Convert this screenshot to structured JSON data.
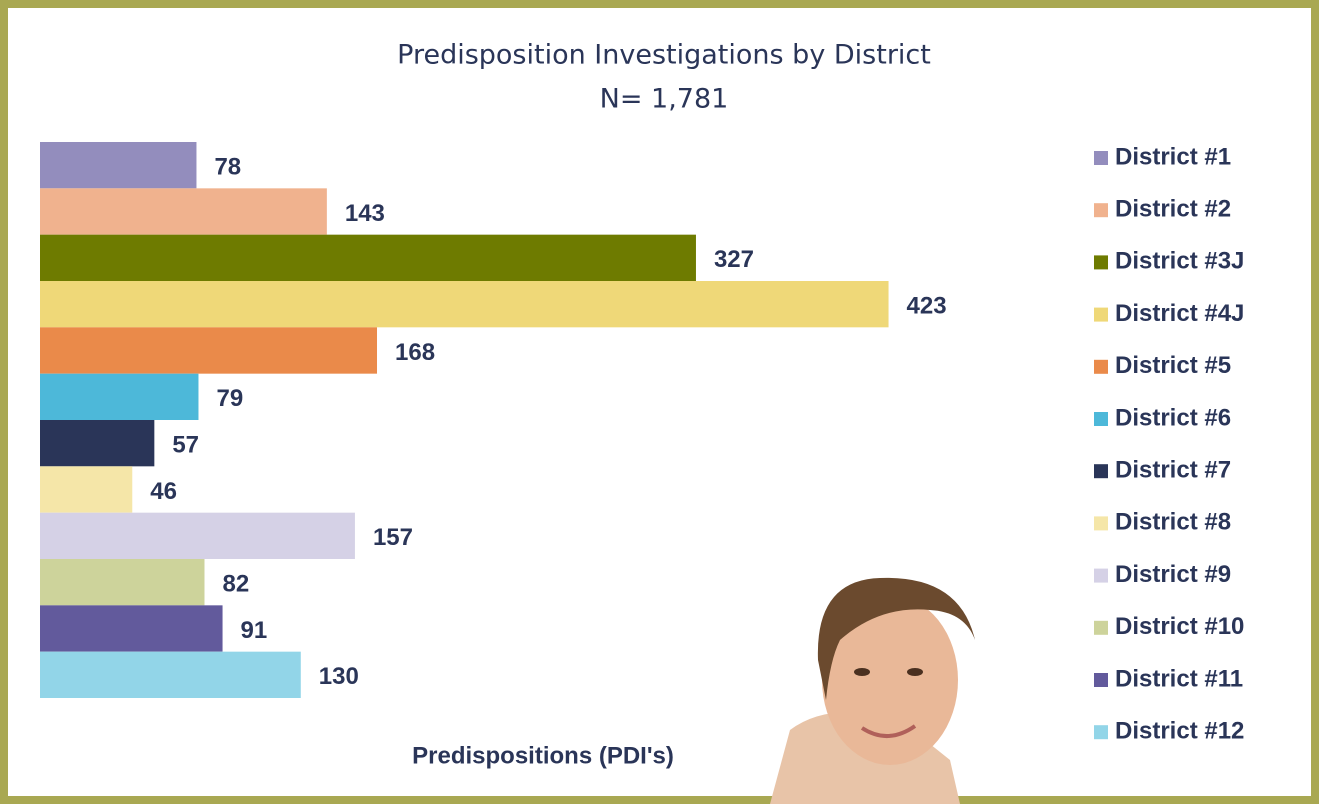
{
  "chart_data": {
    "type": "bar",
    "orientation": "horizontal",
    "title": "Predisposition Investigations by District",
    "subtitle": "N= 1,781",
    "x_label": "Predispositions (PDI's)",
    "xlim": [
      0,
      500
    ],
    "legend": "right",
    "series": [
      {
        "name": "District #1",
        "color": "#938dbd",
        "values": [
          78
        ]
      },
      {
        "name": "District #2",
        "color": "#f0b28e",
        "values": [
          143
        ]
      },
      {
        "name": "District #3J",
        "color": "#6e7b00",
        "values": [
          327
        ]
      },
      {
        "name": "District #4J",
        "color": "#efd878",
        "values": [
          423
        ]
      },
      {
        "name": "District #5",
        "color": "#ea8a4a",
        "values": [
          168
        ]
      },
      {
        "name": "District #6",
        "color": "#4db8d9",
        "values": [
          79
        ]
      },
      {
        "name": "District #7",
        "color": "#2a3558",
        "values": [
          57
        ]
      },
      {
        "name": "District #8",
        "color": "#f5e6a8",
        "values": [
          46
        ]
      },
      {
        "name": "District #9",
        "color": "#d5d1e6",
        "values": [
          157
        ]
      },
      {
        "name": "District #10",
        "color": "#cdd39b",
        "values": [
          82
        ]
      },
      {
        "name": "District #11",
        "color": "#625a9c",
        "values": [
          91
        ]
      },
      {
        "name": "District #12",
        "color": "#92d5e8",
        "values": [
          130
        ]
      }
    ]
  }
}
